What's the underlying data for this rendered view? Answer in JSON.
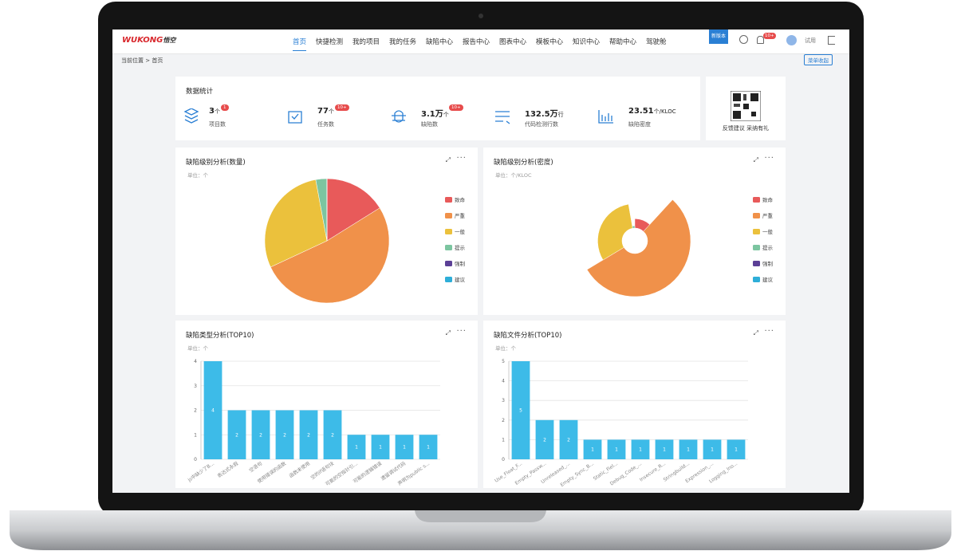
{
  "header": {
    "logo": "WUKONG",
    "logo_cn": "悟空",
    "nav": [
      "首页",
      "快捷检测",
      "我的项目",
      "我的任务",
      "缺陷中心",
      "报告中心",
      "图表中心",
      "模板中心",
      "知识中心",
      "帮助中心",
      "驾驶舱"
    ],
    "new_badge": "新版本",
    "notifications": "10+",
    "user": "试用"
  },
  "breadcrumb": "当前位置 > 首页",
  "collapse_button": "菜单收起",
  "stats": {
    "title": "数据统计",
    "items": [
      {
        "value": "3",
        "unit": "个",
        "badge": "1",
        "label": "项目数"
      },
      {
        "value": "77",
        "unit": "个",
        "badge": "10+",
        "label": "任务数"
      },
      {
        "value": "3.1万",
        "unit": "个",
        "badge": "10+",
        "label": "缺陷数"
      },
      {
        "value": "132.5万",
        "unit": "行",
        "label": "代码检测行数"
      },
      {
        "value": "23.51",
        "unit": "个/KLOC",
        "label": "缺陷密度"
      }
    ]
  },
  "feedback": "反馈建议 采纳有礼",
  "chart_data": [
    {
      "type": "pie",
      "title": "缺陷级别分析(数量)",
      "unit": "单位：个",
      "categories": [
        "致命",
        "严重",
        "一般",
        "提示",
        "强制",
        "建议"
      ],
      "values": [
        5000,
        16100,
        9000,
        900,
        0,
        0
      ],
      "colors": [
        "#e85a5a",
        "#f0914a",
        "#ebc13c",
        "#7cc5a0",
        "#5b3f96",
        "#2eaed8"
      ]
    },
    {
      "type": "rose",
      "title": "缺陷级别分析(密度)",
      "unit": "单位：个/KLOC",
      "categories": [
        "致命",
        "严重",
        "一般",
        "提示",
        "强制",
        "建议"
      ],
      "values": [
        2.6,
        12,
        6.8,
        0.6,
        0,
        0
      ],
      "colors": [
        "#e85a5a",
        "#f0914a",
        "#ebc13c",
        "#7cc5a0",
        "#5b3f96",
        "#2eaed8"
      ]
    },
    {
      "type": "bar",
      "title": "缺陷类型分析(TOP10)",
      "unit": "单位：个",
      "categories": [
        "js中缺少了B...",
        "表达式永假",
        "空语句",
        "使用错误的函数",
        "函数未使用",
        "空的if语句块",
        "可能的空指针引...",
        "可能的逻辑错误",
        "遗留调试代码",
        "声明为public s..."
      ],
      "values": [
        4,
        2,
        2,
        2,
        2,
        2,
        1,
        1,
        1,
        1
      ],
      "color": "#3dbbe8",
      "ylim": [
        0,
        4
      ],
      "yticks": [
        0,
        1,
        2,
        3,
        4
      ],
      "grid": true
    },
    {
      "type": "bar",
      "title": "缺陷文件分析(TOP10)",
      "unit": "单位：个",
      "categories": [
        "Use_Float_F...",
        "Empty_Passw...",
        "Unreleased_...",
        "Empty_Sync_B...",
        "Static_Fiel...",
        "Debug_Code_...",
        "Insecure_R...",
        "Stringbuild...",
        "Expression_...",
        "Logging_Ino..."
      ],
      "values": [
        5,
        2,
        2,
        1,
        1,
        1,
        1,
        1,
        1,
        1
      ],
      "color": "#3dbbe8",
      "ylim": [
        0,
        5
      ],
      "yticks": [
        0,
        1,
        2,
        3,
        4,
        5
      ],
      "grid": true
    }
  ]
}
